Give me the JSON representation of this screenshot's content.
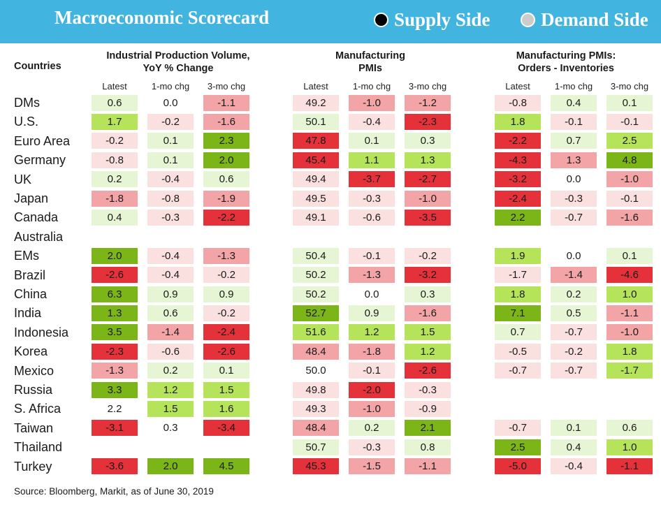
{
  "header": {
    "title": "Macroeconomic Scorecard",
    "legend": [
      {
        "label": "Supply Side",
        "dot_color": "#000000"
      },
      {
        "label": "Demand Side",
        "dot_color": "#cccccc"
      }
    ]
  },
  "countries_header": "Countries",
  "colors": {
    "strong_positive": "#7cb518",
    "positive": "#b5e35a",
    "mild_positive": "#e6f5d3",
    "neutral": "#ffffff",
    "mild_negative": "#fbe0e0",
    "negative": "#f2a4a6",
    "strong_negative": "#e5313a"
  },
  "chart_data": {
    "type": "table",
    "groups": [
      {
        "title_line1": "Industrial Production Volume,",
        "title_line2": "YoY % Change",
        "columns": [
          "Latest",
          "1-mo chg",
          "3-mo chg"
        ]
      },
      {
        "title_line1": "Manufacturing",
        "title_line2": "PMIs",
        "columns": [
          "Latest",
          "1-mo chg",
          "3-mo chg"
        ]
      },
      {
        "title_line1": "Manufacturing PMIs:",
        "title_line2": "Orders - Inventories",
        "columns": [
          "Latest",
          "1-mo chg",
          "3-mo chg"
        ]
      }
    ],
    "rows": [
      {
        "country": "DMs",
        "values": [
          [
            "0.6",
            "0.0",
            "-1.1"
          ],
          [
            "49.2",
            "-1.0",
            "-1.2"
          ],
          [
            "-0.8",
            "0.4",
            "0.1"
          ]
        ],
        "shades": [
          [
            "mp",
            "n",
            "ng"
          ],
          [
            "mn",
            "ng",
            "ng"
          ],
          [
            "mn",
            "mp",
            "mp"
          ]
        ]
      },
      {
        "country": "U.S.",
        "values": [
          [
            "1.7",
            "-0.2",
            "-1.6"
          ],
          [
            "50.1",
            "-0.4",
            "-2.3"
          ],
          [
            "1.8",
            "-0.1",
            "-0.1"
          ]
        ],
        "shades": [
          [
            "p",
            "mn",
            "ng"
          ],
          [
            "mp",
            "mn",
            "sn"
          ],
          [
            "p",
            "mn",
            "mn"
          ]
        ]
      },
      {
        "country": "Euro Area",
        "values": [
          [
            "-0.2",
            "0.1",
            "2.3"
          ],
          [
            "47.8",
            "0.1",
            "0.3"
          ],
          [
            "-2.2",
            "0.7",
            "2.5"
          ]
        ],
        "shades": [
          [
            "mn",
            "mp",
            "sp"
          ],
          [
            "sn",
            "mp",
            "mp"
          ],
          [
            "sn",
            "mp",
            "p"
          ]
        ]
      },
      {
        "country": "Germany",
        "values": [
          [
            "-0.8",
            "0.1",
            "2.0"
          ],
          [
            "45.4",
            "1.1",
            "1.3"
          ],
          [
            "-4.3",
            "1.3",
            "4.8"
          ]
        ],
        "shades": [
          [
            "mn",
            "mp",
            "sp"
          ],
          [
            "sn",
            "p",
            "p"
          ],
          [
            "sn",
            "ng",
            "sp"
          ]
        ]
      },
      {
        "country": "UK",
        "values": [
          [
            "0.2",
            "-0.4",
            "0.6"
          ],
          [
            "49.4",
            "-3.7",
            "-2.7"
          ],
          [
            "-3.2",
            "0.0",
            "-1.0"
          ]
        ],
        "shades": [
          [
            "mp",
            "mn",
            "mp"
          ],
          [
            "mn",
            "sn",
            "sn"
          ],
          [
            "sn",
            "n",
            "ng"
          ]
        ]
      },
      {
        "country": "Japan",
        "values": [
          [
            "-1.8",
            "-0.8",
            "-1.9"
          ],
          [
            "49.5",
            "-0.3",
            "-1.0"
          ],
          [
            "-2.4",
            "-0.3",
            "-0.1"
          ]
        ],
        "shades": [
          [
            "ng",
            "mn",
            "ng"
          ],
          [
            "mn",
            "mn",
            "ng"
          ],
          [
            "sn",
            "mn",
            "mn"
          ]
        ]
      },
      {
        "country": "Canada",
        "values": [
          [
            "0.4",
            "-0.3",
            "-2.2"
          ],
          [
            "49.1",
            "-0.6",
            "-3.5"
          ],
          [
            "2.2",
            "-0.7",
            "-1.6"
          ]
        ],
        "shades": [
          [
            "mp",
            "mn",
            "sn"
          ],
          [
            "mn",
            "mn",
            "sn"
          ],
          [
            "sp",
            "mn",
            "ng"
          ]
        ]
      },
      {
        "country": "Australia",
        "values": [
          [
            "",
            "",
            ""
          ],
          [
            "",
            "",
            ""
          ],
          [
            "",
            "",
            ""
          ]
        ],
        "shades": [
          [
            "n",
            "n",
            "n"
          ],
          [
            "n",
            "n",
            "n"
          ],
          [
            "n",
            "n",
            "n"
          ]
        ]
      },
      {
        "country": "EMs",
        "values": [
          [
            "2.0",
            "-0.4",
            "-1.3"
          ],
          [
            "50.4",
            "-0.1",
            "-0.2"
          ],
          [
            "1.9",
            "0.0",
            "0.1"
          ]
        ],
        "shades": [
          [
            "sp",
            "mn",
            "ng"
          ],
          [
            "mp",
            "mn",
            "mn"
          ],
          [
            "p",
            "n",
            "mp"
          ]
        ]
      },
      {
        "country": "Brazil",
        "values": [
          [
            "-2.6",
            "-0.4",
            "-0.2"
          ],
          [
            "50.2",
            "-1.3",
            "-3.2"
          ],
          [
            "-1.7",
            "-1.4",
            "-4.6"
          ]
        ],
        "shades": [
          [
            "sn",
            "mn",
            "mn"
          ],
          [
            "mp",
            "ng",
            "sn"
          ],
          [
            "mn",
            "ng",
            "sn"
          ]
        ]
      },
      {
        "country": "China",
        "values": [
          [
            "6.3",
            "0.9",
            "0.9"
          ],
          [
            "50.2",
            "0.0",
            "0.3"
          ],
          [
            "1.8",
            "0.2",
            "1.0"
          ]
        ],
        "shades": [
          [
            "sp",
            "mp",
            "mp"
          ],
          [
            "mp",
            "n",
            "mp"
          ],
          [
            "p",
            "mp",
            "p"
          ]
        ]
      },
      {
        "country": "India",
        "values": [
          [
            "1.3",
            "0.6",
            "-0.2"
          ],
          [
            "52.7",
            "0.9",
            "-1.6"
          ],
          [
            "7.1",
            "0.5",
            "-1.1"
          ]
        ],
        "shades": [
          [
            "sp",
            "mp",
            "mn"
          ],
          [
            "sp",
            "mp",
            "ng"
          ],
          [
            "sp",
            "mp",
            "ng"
          ]
        ]
      },
      {
        "country": "Indonesia",
        "values": [
          [
            "3.5",
            "-1.4",
            "-2.4"
          ],
          [
            "51.6",
            "1.2",
            "1.5"
          ],
          [
            "0.7",
            "-0.7",
            "-1.0"
          ]
        ],
        "shades": [
          [
            "sp",
            "ng",
            "sn"
          ],
          [
            "p",
            "p",
            "p"
          ],
          [
            "mp",
            "mn",
            "ng"
          ]
        ]
      },
      {
        "country": "Korea",
        "values": [
          [
            "-2.3",
            "-0.6",
            "-2.6"
          ],
          [
            "48.4",
            "-1.8",
            "1.2"
          ],
          [
            "-0.5",
            "-0.2",
            "1.8"
          ]
        ],
        "shades": [
          [
            "sn",
            "mn",
            "sn"
          ],
          [
            "ng",
            "ng",
            "p"
          ],
          [
            "mn",
            "mn",
            "p"
          ]
        ]
      },
      {
        "country": "Mexico",
        "values": [
          [
            "-1.3",
            "0.2",
            "0.1"
          ],
          [
            "50.0",
            "-0.1",
            "-2.6"
          ],
          [
            "-0.7",
            "-0.7",
            "-1.7"
          ]
        ],
        "shades": [
          [
            "ng",
            "mp",
            "mp"
          ],
          [
            "n",
            "mn",
            "sn"
          ],
          [
            "mn",
            "mn",
            "p"
          ]
        ]
      },
      {
        "country": "Russia",
        "values": [
          [
            "3.3",
            "1.2",
            "1.5"
          ],
          [
            "49.8",
            "-2.0",
            "-0.3"
          ],
          [
            "",
            "",
            ""
          ]
        ],
        "shades": [
          [
            "sp",
            "p",
            "p"
          ],
          [
            "mn",
            "sn",
            "mn"
          ],
          [
            "n",
            "n",
            "n"
          ]
        ]
      },
      {
        "country": "S. Africa",
        "values": [
          [
            "2.2",
            "1.5",
            "1.6"
          ],
          [
            "49.3",
            "-1.0",
            "-0.9"
          ],
          [
            "",
            "",
            ""
          ]
        ],
        "shades": [
          [
            "n",
            "p",
            "p"
          ],
          [
            "mn",
            "ng",
            "mn"
          ],
          [
            "n",
            "n",
            "n"
          ]
        ]
      },
      {
        "country": "Taiwan",
        "values": [
          [
            "-3.1",
            "0.3",
            "-3.4"
          ],
          [
            "48.4",
            "0.2",
            "2.1"
          ],
          [
            "-0.7",
            "0.1",
            "0.6"
          ]
        ],
        "shades": [
          [
            "sn",
            "n",
            "sn"
          ],
          [
            "ng",
            "mp",
            "sp"
          ],
          [
            "mn",
            "mp",
            "mp"
          ]
        ]
      },
      {
        "country": "Thailand",
        "values": [
          [
            "",
            "",
            ""
          ],
          [
            "50.7",
            "-0.3",
            "0.8"
          ],
          [
            "2.5",
            "0.4",
            "1.0"
          ]
        ],
        "shades": [
          [
            "n",
            "n",
            "n"
          ],
          [
            "mp",
            "mn",
            "mp"
          ],
          [
            "sp",
            "mp",
            "p"
          ]
        ]
      },
      {
        "country": "Turkey",
        "values": [
          [
            "-3.6",
            "2.0",
            "4.5"
          ],
          [
            "45.3",
            "-1.5",
            "-1.1"
          ],
          [
            "-5.0",
            "-0.4",
            "-1.1"
          ]
        ],
        "shades": [
          [
            "sn",
            "sp",
            "sp"
          ],
          [
            "sn",
            "ng",
            "ng"
          ],
          [
            "sn",
            "mn",
            "sn"
          ]
        ]
      }
    ]
  },
  "footer": {
    "source": "Source: Bloomberg, Markit, as of June 30, 2019"
  }
}
